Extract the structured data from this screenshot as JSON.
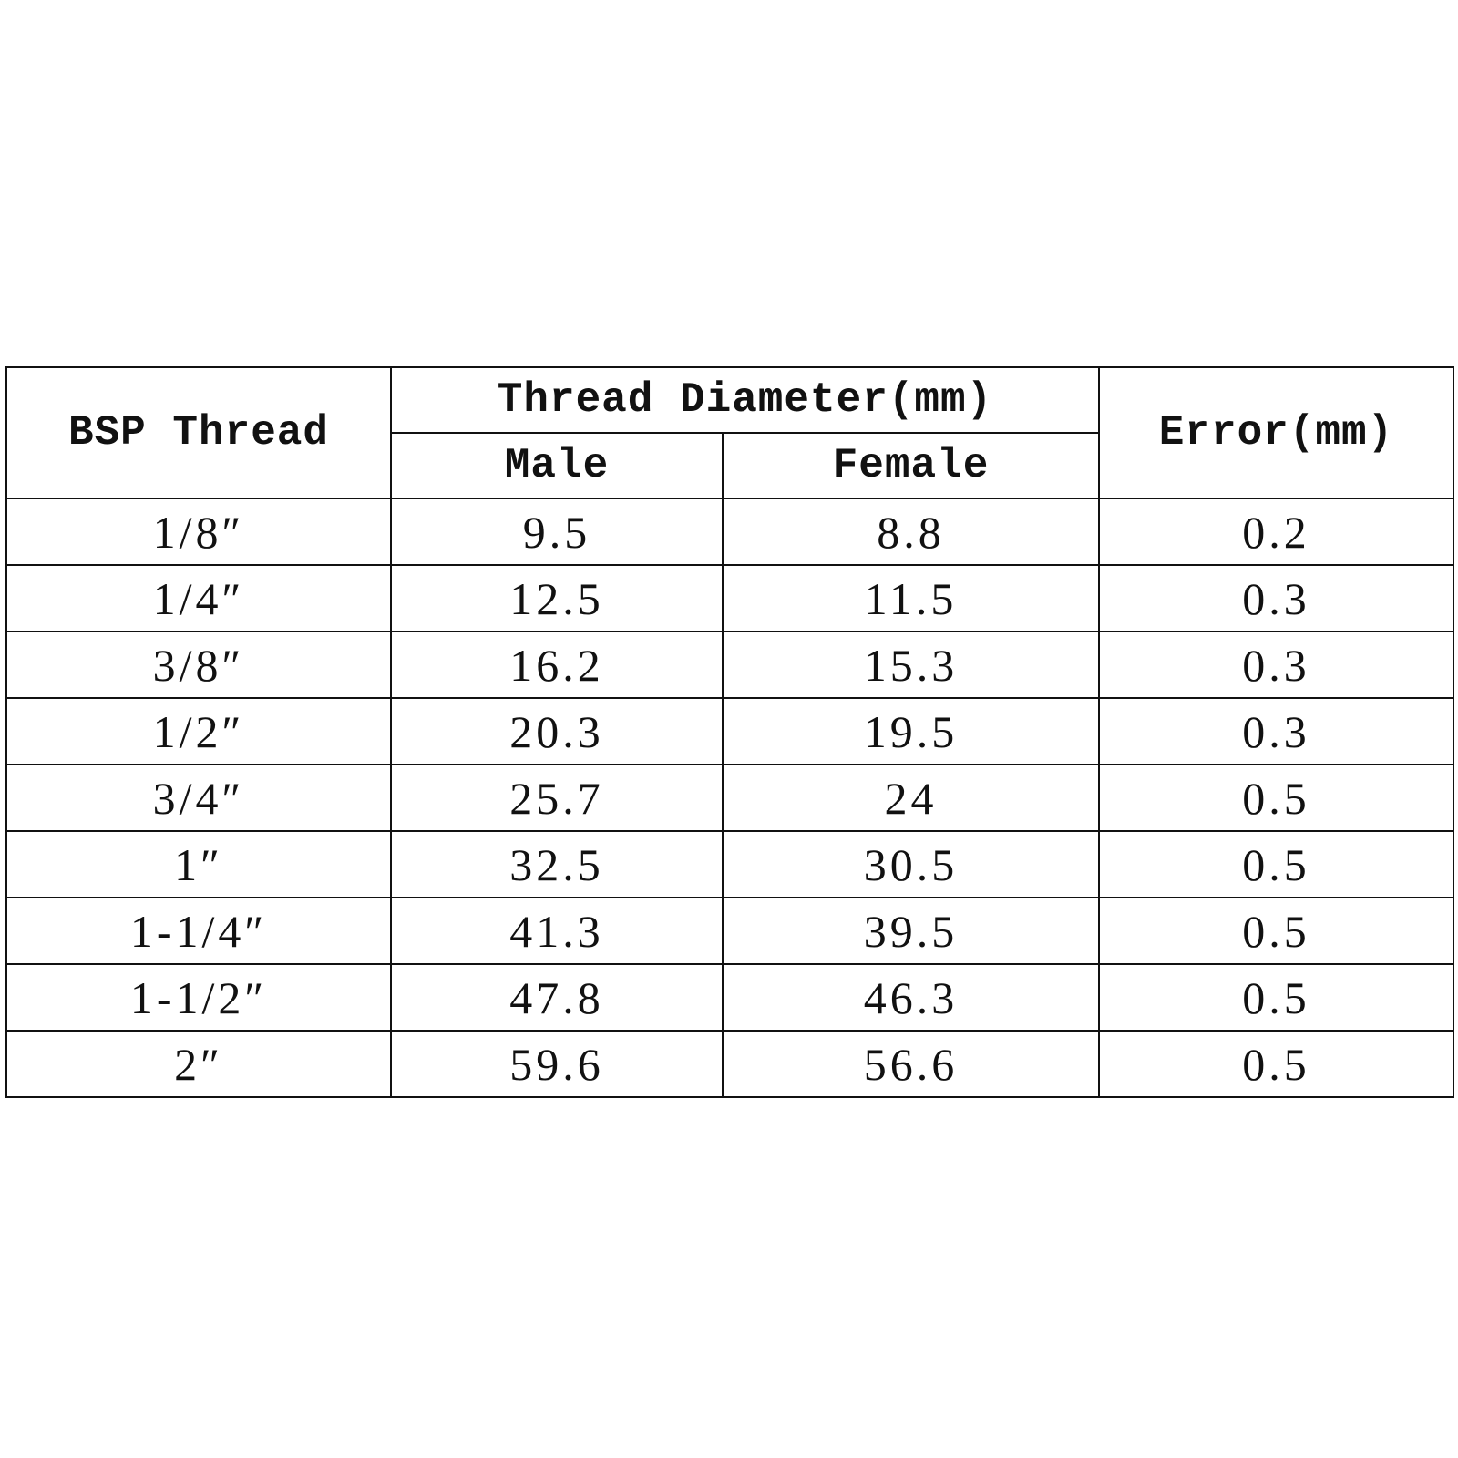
{
  "table": {
    "header": {
      "thread": "BSP Thread",
      "diameter": "Thread Diameter(mm)",
      "male": "Male",
      "female": "Female",
      "error": "Error(mm)"
    },
    "rows": [
      [
        "1/8″",
        "9.5",
        "8.8",
        "0.2"
      ],
      [
        "1/4″",
        "12.5",
        "11.5",
        "0.3"
      ],
      [
        "3/8″",
        "16.2",
        "15.3",
        "0.3"
      ],
      [
        "1/2″",
        "20.3",
        "19.5",
        "0.3"
      ],
      [
        "3/4″",
        "25.7",
        "24",
        "0.5"
      ],
      [
        "1″",
        "32.5",
        "30.5",
        "0.5"
      ],
      [
        "1-1/4″",
        "41.3",
        "39.5",
        "0.5"
      ],
      [
        "1-1/2″",
        "47.8",
        "46.3",
        "0.5"
      ],
      [
        "2″",
        "59.6",
        "56.6",
        "0.5"
      ]
    ]
  }
}
